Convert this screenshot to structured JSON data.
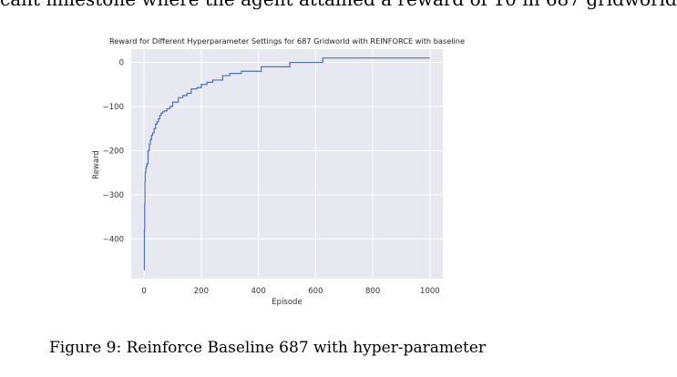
{
  "document": {
    "top_text": "cant milestone where the agent attained a reward of 10 in 687 gridworld",
    "caption": "Figure 9: Reinforce Baseline 687 with hyper-parameter"
  },
  "colors": {
    "plot_background": "#e8e8f1",
    "grid": "#ffffff",
    "line": "#4c72b0",
    "text": "#333333"
  },
  "chart_data": {
    "type": "line",
    "title": "Reward for Different Hyperparameter Settings for 687 Gridworld with REINFORCE with baseline",
    "xlabel": "Episode",
    "ylabel": "Reward",
    "xlim": [
      -45,
      1045
    ],
    "ylim": [
      -490,
      30
    ],
    "xticks": [
      0,
      200,
      400,
      600,
      800,
      1000
    ],
    "xtick_labels": [
      "0",
      "200",
      "400",
      "600",
      "800",
      "1000"
    ],
    "yticks": [
      0,
      -100,
      -200,
      -300,
      -400
    ],
    "ytick_labels": [
      "0",
      "−100",
      "−200",
      "−300",
      "−400"
    ],
    "grid": true,
    "series": [
      {
        "step": "post",
        "x": [
          0,
          1,
          2,
          3,
          4,
          6,
          8,
          10,
          14,
          18,
          22,
          26,
          30,
          35,
          40,
          45,
          50,
          55,
          60,
          65,
          70,
          80,
          90,
          100,
          120,
          135,
          150,
          165,
          185,
          200,
          220,
          240,
          275,
          300,
          340,
          410,
          510,
          625,
          1000
        ],
        "y": [
          -470,
          -380,
          -320,
          -270,
          -250,
          -240,
          -235,
          -230,
          -200,
          -185,
          -175,
          -165,
          -160,
          -150,
          -140,
          -135,
          -128,
          -120,
          -115,
          -112,
          -110,
          -105,
          -100,
          -90,
          -80,
          -75,
          -70,
          -60,
          -57,
          -50,
          -45,
          -40,
          -30,
          -25,
          -20,
          -10,
          0,
          10,
          10
        ]
      }
    ]
  }
}
